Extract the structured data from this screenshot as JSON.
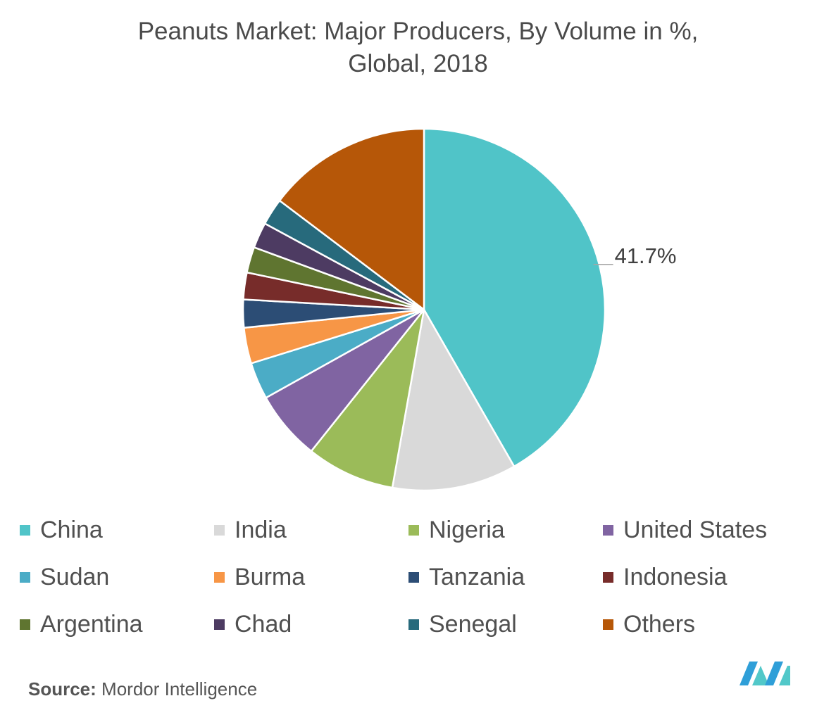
{
  "title_line1": "Peanuts Market: Major Producers, By Volume in %,",
  "title_line2": "Global, 2018",
  "source_label": "Source:",
  "source_value": "Mordor Intelligence",
  "chart_data": {
    "type": "pie",
    "title": "Peanuts Market: Major Producers, By Volume in %, Global, 2018",
    "unit": "%",
    "start_angle_deg": 0,
    "direction": "clockwise",
    "legend_position": "bottom",
    "categories": [
      "China",
      "India",
      "Nigeria",
      "United States",
      "Sudan",
      "Burma",
      "Tanzania",
      "Indonesia",
      "Argentina",
      "Chad",
      "Senegal",
      "Others"
    ],
    "values": [
      41.7,
      11.1,
      7.9,
      6.2,
      3.3,
      3.2,
      2.5,
      2.4,
      2.3,
      2.3,
      2.4,
      14.7
    ],
    "colors": [
      "#50c4c8",
      "#d9d9d9",
      "#9bbb59",
      "#8064a2",
      "#4bacc6",
      "#f79646",
      "#2c4d75",
      "#772c2a",
      "#5f7530",
      "#4d3b62",
      "#276a7c",
      "#b65708"
    ],
    "data_labels": [
      {
        "category": "China",
        "text": "41.7%"
      }
    ]
  }
}
